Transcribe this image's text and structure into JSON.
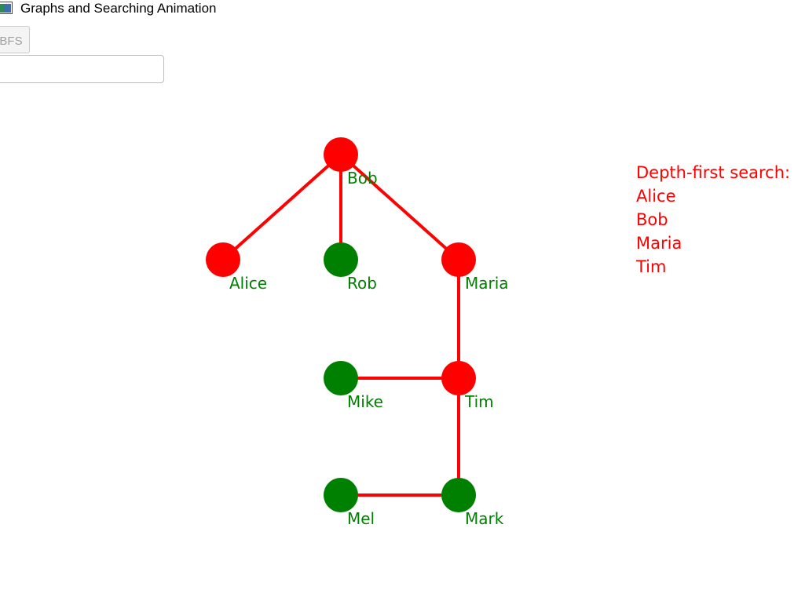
{
  "window": {
    "title": "Graphs and Searching Animation"
  },
  "toolbar": {
    "bfs_label": "BFS"
  },
  "search": {
    "value": ""
  },
  "colors": {
    "visited": "#ff0000",
    "unvisited": "#008000",
    "label": "#008000",
    "result": "#ff0000"
  },
  "graph": {
    "nodes": [
      {
        "id": "bob",
        "label": "Bob",
        "visited": true
      },
      {
        "id": "alice",
        "label": "Alice",
        "visited": true
      },
      {
        "id": "rob",
        "label": "Rob",
        "visited": false
      },
      {
        "id": "maria",
        "label": "Maria",
        "visited": true
      },
      {
        "id": "mike",
        "label": "Mike",
        "visited": false
      },
      {
        "id": "tim",
        "label": "Tim",
        "visited": true
      },
      {
        "id": "mel",
        "label": "Mel",
        "visited": false
      },
      {
        "id": "mark",
        "label": "Mark",
        "visited": false
      }
    ],
    "edges": [
      [
        "bob",
        "alice"
      ],
      [
        "bob",
        "rob"
      ],
      [
        "bob",
        "maria"
      ],
      [
        "maria",
        "tim"
      ],
      [
        "mike",
        "tim"
      ],
      [
        "tim",
        "mark"
      ],
      [
        "mel",
        "mark"
      ]
    ]
  },
  "result": {
    "heading": "Depth-first search:",
    "order": [
      "Alice",
      "Bob",
      "Maria",
      "Tim"
    ]
  }
}
